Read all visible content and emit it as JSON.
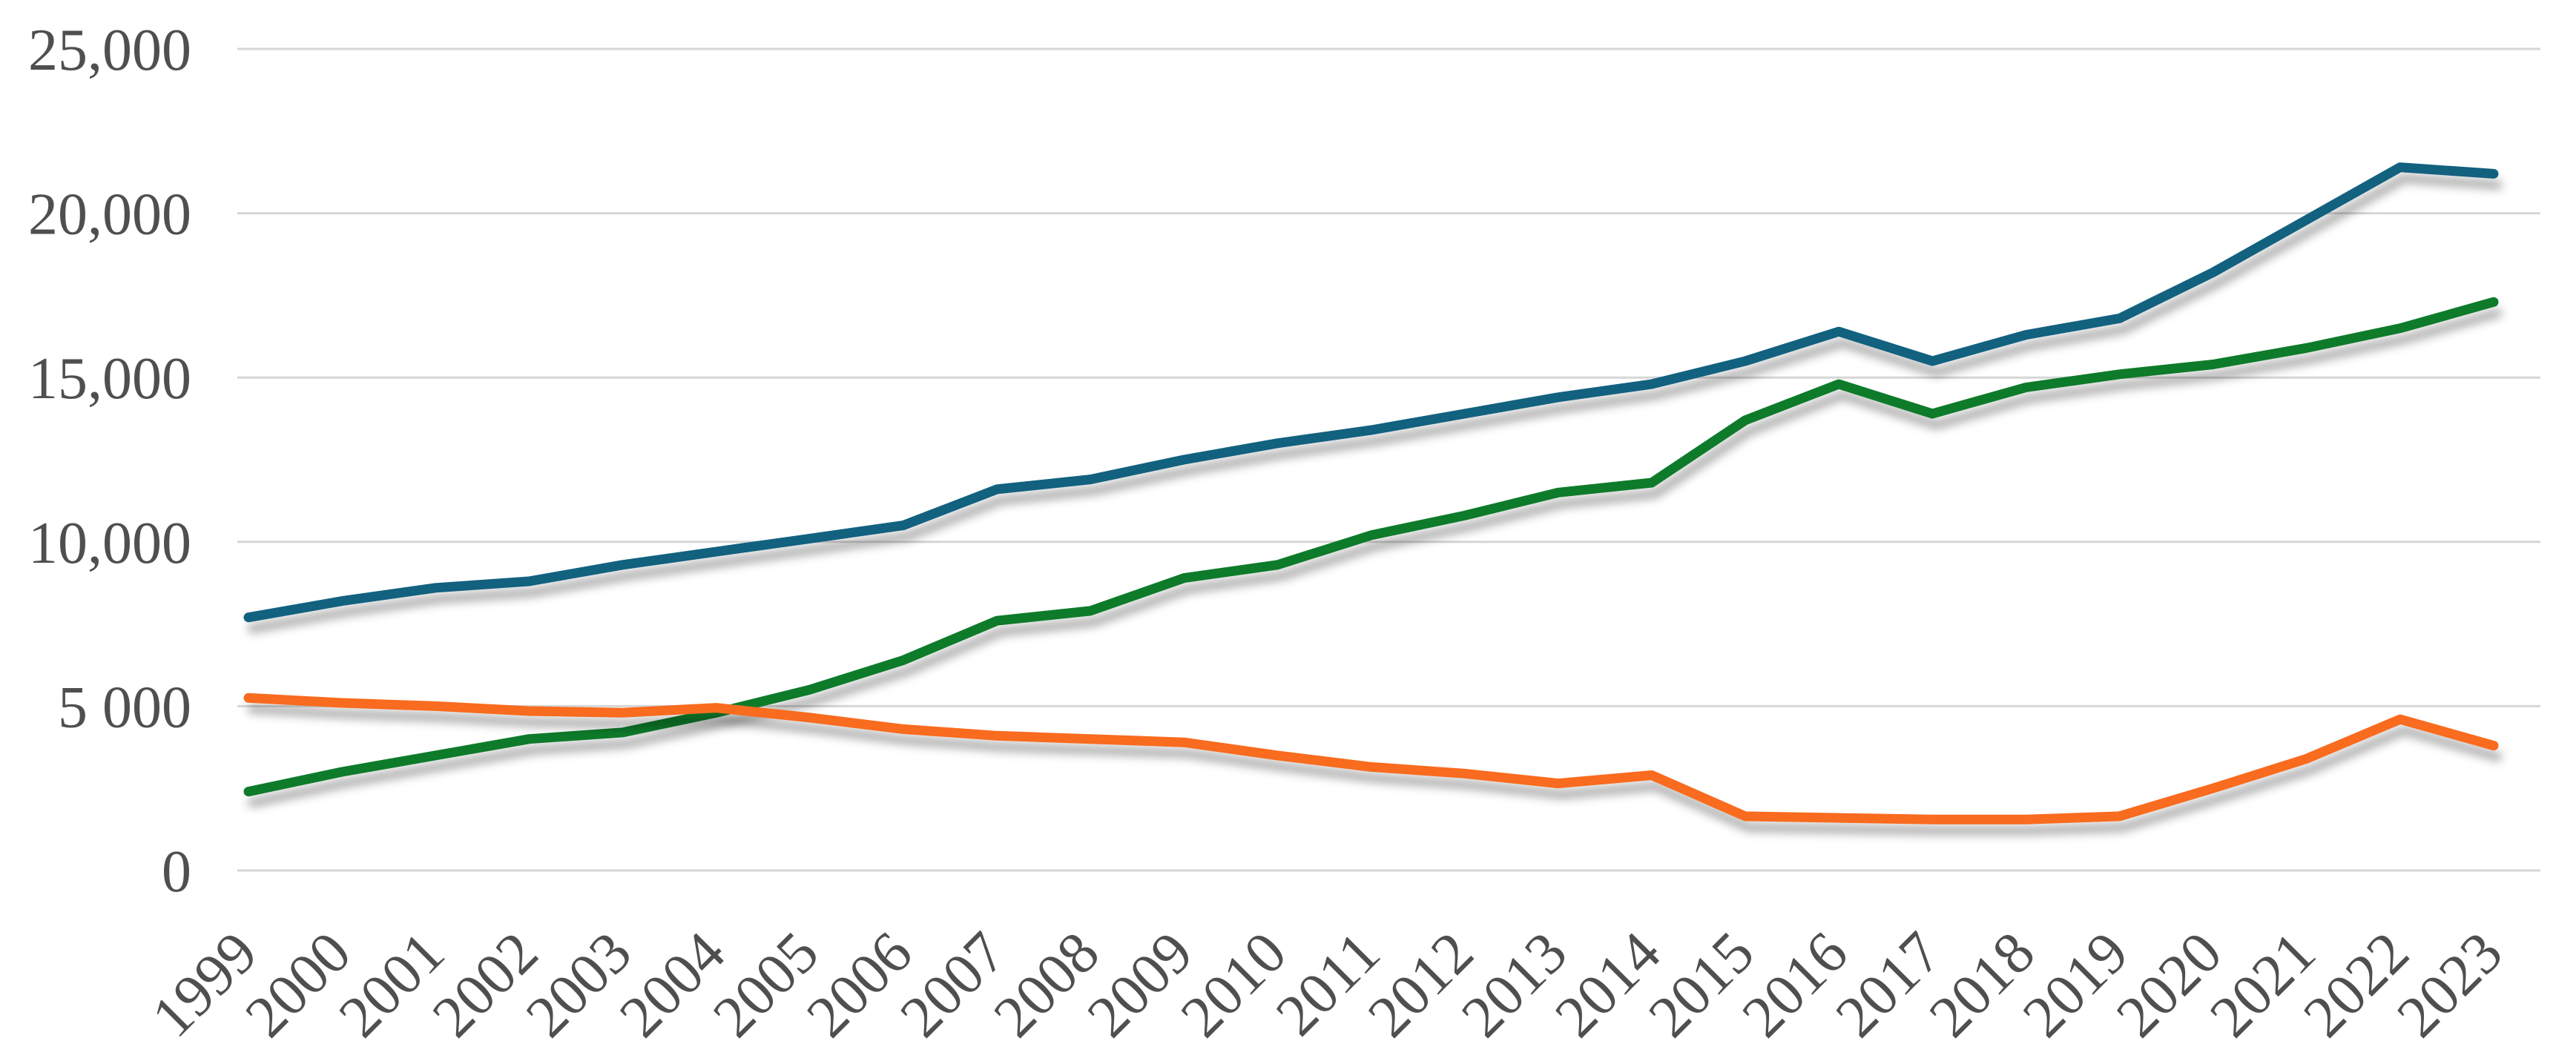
{
  "chart_data": {
    "type": "line",
    "title": "",
    "x_labels": [
      "1999",
      "2000",
      "2001",
      "2002",
      "2003",
      "2004",
      "2005",
      "2006",
      "2007",
      "2008",
      "2009",
      "2010",
      "2011",
      "2012",
      "2013",
      "2014",
      "2015",
      "2016",
      "2017",
      "2018",
      "2019",
      "2020",
      "2021",
      "2022",
      "2023"
    ],
    "series": [
      {
        "name": "blue-series",
        "color": "#12617F",
        "values": [
          7700,
          8200,
          8600,
          8800,
          9300,
          9700,
          10100,
          10500,
          11600,
          11900,
          12500,
          13000,
          13400,
          13900,
          14400,
          14800,
          15500,
          16400,
          15500,
          16300,
          16800,
          18200,
          19800,
          21400,
          21200
        ]
      },
      {
        "name": "green-series",
        "color": "#0E7B2A",
        "values": [
          2400,
          3000,
          3500,
          4000,
          4200,
          4800,
          5500,
          6400,
          7600,
          7900,
          8900,
          9300,
          10200,
          10800,
          11500,
          11800,
          13700,
          14800,
          13900,
          14700,
          15100,
          15400,
          15900,
          16500,
          17300
        ]
      },
      {
        "name": "orange-series",
        "color": "#F96B1E",
        "values": [
          5250,
          5100,
          5000,
          4850,
          4800,
          4950,
          4650,
          4300,
          4100,
          4000,
          3900,
          3500,
          3150,
          2950,
          2650,
          2900,
          1650,
          1600,
          1550,
          1550,
          1650,
          2500,
          3400,
          4600,
          3800
        ]
      }
    ],
    "y_axis": {
      "min": 0,
      "max": 25000,
      "tick_step": 5000,
      "tick_labels": [
        "0",
        "5 000",
        "10,000",
        "15,000",
        "20,000",
        "25,000"
      ]
    },
    "x_axis_rotation_deg": 45,
    "grid": true,
    "legend": "none",
    "gridline_color": "#d6d6d6",
    "axis_label_color": "#4f4f4f"
  }
}
